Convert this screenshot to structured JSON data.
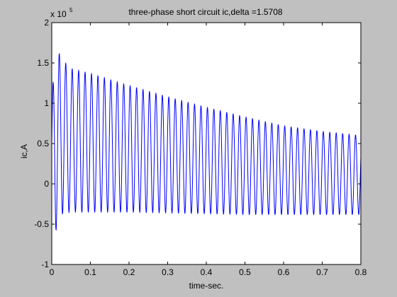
{
  "window": {
    "background": "#c0c0c0"
  },
  "chart_data": {
    "type": "line",
    "title": "three-phase short circuit ic,delta =1.5708",
    "xlabel": "time-sec.",
    "ylabel": "ic,A",
    "y_multiplier_label": "x 10",
    "y_multiplier_exponent": "5",
    "xlim": [
      0,
      0.8
    ],
    "ylim": [
      -1,
      2
    ],
    "y_scale_factor": 100000,
    "x_ticks": [
      0,
      0.1,
      0.2,
      0.3,
      0.4,
      0.5,
      0.6,
      0.7,
      0.8
    ],
    "x_tick_labels": [
      "0",
      "0.1",
      "0.2",
      "0.3",
      "0.4",
      "0.5",
      "0.6",
      "0.7",
      "0.8"
    ],
    "y_ticks": [
      -1,
      -0.5,
      0,
      0.5,
      1,
      1.5,
      2
    ],
    "y_tick_labels": [
      "-1",
      "-0.5",
      "0",
      "0.5",
      "1",
      "1.5",
      "2"
    ],
    "grid": false,
    "series": [
      {
        "color": "#0000ff",
        "frequency_hz": 60,
        "upper_envelope": {
          "t": [
            0.0,
            0.008,
            0.016,
            0.025,
            0.05,
            0.1,
            0.2,
            0.3,
            0.4,
            0.5,
            0.6,
            0.7,
            0.8
          ],
          "value": [
            0.9,
            1.76,
            1.66,
            1.55,
            1.43,
            1.37,
            1.22,
            1.08,
            0.95,
            0.83,
            0.72,
            0.65,
            0.6
          ]
        },
        "lower_envelope": {
          "t": [
            0.0,
            0.005,
            0.01,
            0.015,
            0.02,
            0.03,
            0.05,
            0.1,
            0.2,
            0.3,
            0.4,
            0.5,
            0.6,
            0.7,
            0.8
          ],
          "value": [
            -0.55,
            -0.65,
            -0.6,
            -0.48,
            -0.42,
            -0.36,
            -0.35,
            -0.35,
            -0.35,
            -0.36,
            -0.37,
            -0.38,
            -0.38,
            -0.38,
            -0.38
          ]
        }
      }
    ]
  }
}
